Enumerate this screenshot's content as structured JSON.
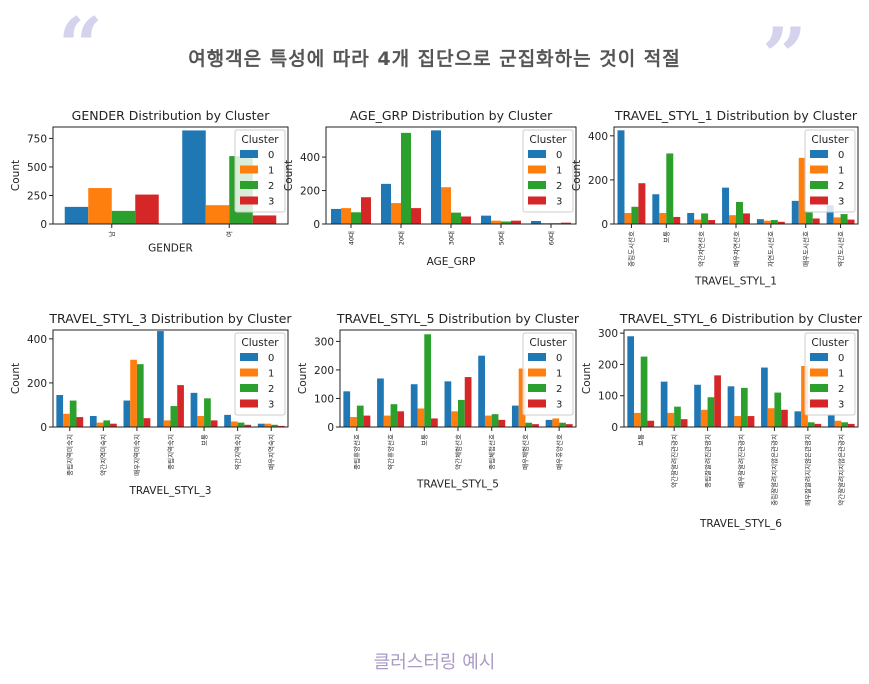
{
  "headline": "여행객은 특성에 따라 4개 집단으로 군집화하는 것이 적절",
  "caption": "클러스터링 예시",
  "colors": [
    "#1f77b4",
    "#ff7f0e",
    "#2ca02c",
    "#d62728"
  ],
  "legend_title": "Cluster",
  "legend_labels": [
    "0",
    "1",
    "2",
    "3"
  ],
  "chart_data": [
    {
      "type": "bar",
      "title": "GENDER Distribution by Cluster",
      "xlabel": "GENDER",
      "ylabel": "Count",
      "ylim": [
        0,
        850
      ],
      "yticks": [
        0,
        250,
        500,
        750
      ],
      "categories": [
        "남",
        "여"
      ],
      "series": [
        {
          "name": "0",
          "values": [
            150,
            820
          ]
        },
        {
          "name": "1",
          "values": [
            315,
            165
          ]
        },
        {
          "name": "2",
          "values": [
            115,
            595
          ]
        },
        {
          "name": "3",
          "values": [
            258,
            75
          ]
        }
      ],
      "legend": "top-right"
    },
    {
      "type": "bar",
      "title": "AGE_GRP Distribution by Cluster",
      "xlabel": "AGE_GRP",
      "ylabel": "Count",
      "ylim": [
        0,
        580
      ],
      "yticks": [
        0,
        200,
        400
      ],
      "categories": [
        "40대",
        "20대",
        "30대",
        "50대",
        "60대"
      ],
      "series": [
        {
          "name": "0",
          "values": [
            90,
            240,
            560,
            50,
            18
          ]
        },
        {
          "name": "1",
          "values": [
            95,
            125,
            220,
            20,
            5
          ]
        },
        {
          "name": "2",
          "values": [
            70,
            545,
            68,
            15,
            5
          ]
        },
        {
          "name": "3",
          "values": [
            160,
            95,
            45,
            20,
            8
          ]
        }
      ],
      "legend": "top-right"
    },
    {
      "type": "bar",
      "title": "TRAVEL_STYL_1 Distribution by Cluster",
      "xlabel": "TRAVEL_STYL_1",
      "ylabel": "Count",
      "ylim": [
        0,
        440
      ],
      "yticks": [
        0,
        200,
        400
      ],
      "categories": [
        "중립도시선호",
        "보통",
        "약간자연선호",
        "매우자연선호",
        "자연도시선호",
        "매우도시선호",
        "약간도시선호"
      ],
      "series": [
        {
          "name": "0",
          "values": [
            425,
            135,
            50,
            165,
            22,
            105,
            85
          ]
        },
        {
          "name": "1",
          "values": [
            50,
            50,
            20,
            40,
            15,
            300,
            30
          ]
        },
        {
          "name": "2",
          "values": [
            78,
            320,
            48,
            100,
            18,
            55,
            45
          ]
        },
        {
          "name": "3",
          "values": [
            185,
            32,
            18,
            48,
            10,
            25,
            20
          ]
        }
      ],
      "legend": "top-right"
    },
    {
      "type": "bar",
      "title": "TRAVEL_STYL_3 Distribution by Cluster",
      "xlabel": "TRAVEL_STYL_3",
      "ylabel": "Count",
      "ylim": [
        0,
        440
      ],
      "yticks": [
        0,
        200,
        400
      ],
      "categories": [
        "중립지역미숙지",
        "약간지역미숙지",
        "매우지역미숙지",
        "중립지역숙지",
        "보통",
        "약간지역숙지",
        "매우지역숙지"
      ],
      "series": [
        {
          "name": "0",
          "values": [
            145,
            50,
            120,
            435,
            155,
            55,
            15
          ]
        },
        {
          "name": "1",
          "values": [
            60,
            20,
            305,
            30,
            50,
            25,
            15
          ]
        },
        {
          "name": "2",
          "values": [
            120,
            30,
            285,
            95,
            130,
            20,
            10
          ]
        },
        {
          "name": "3",
          "values": [
            45,
            15,
            40,
            190,
            30,
            10,
            5
          ]
        }
      ],
      "legend": "top-right"
    },
    {
      "type": "bar",
      "title": "TRAVEL_STYL_5 Distribution by Cluster",
      "xlabel": "TRAVEL_STYL_5",
      "ylabel": "Count",
      "ylim": [
        0,
        340
      ],
      "yticks": [
        0,
        100,
        200,
        300
      ],
      "categories": [
        "중립휴양선호",
        "약간휴양선호",
        "보통",
        "약간체험선호",
        "중립체험선호",
        "매우체험선호",
        "매우휴양선호"
      ],
      "series": [
        {
          "name": "0",
          "values": [
            125,
            170,
            150,
            160,
            250,
            75,
            25
          ]
        },
        {
          "name": "1",
          "values": [
            35,
            40,
            65,
            55,
            40,
            205,
            30
          ]
        },
        {
          "name": "2",
          "values": [
            75,
            80,
            325,
            95,
            45,
            15,
            15
          ]
        },
        {
          "name": "3",
          "values": [
            40,
            55,
            30,
            175,
            25,
            10,
            10
          ]
        }
      ],
      "legend": "top-right"
    },
    {
      "type": "bar",
      "title": "TRAVEL_STYL_6 Distribution by Cluster",
      "xlabel": "TRAVEL_STYL_6",
      "ylabel": "Count",
      "ylim": [
        0,
        310
      ],
      "yticks": [
        0,
        100,
        200,
        300
      ],
      "categories": [
        "보통",
        "약간잘알려진관광지",
        "중립잘알려진관광지",
        "매우잘알려진관광지",
        "중립잘알려지지않은관광지",
        "매우잘알려지지않은관광지",
        "약간잘알려지지않은관광지"
      ],
      "series": [
        {
          "name": "0",
          "values": [
            290,
            145,
            135,
            130,
            190,
            50,
            40
          ]
        },
        {
          "name": "1",
          "values": [
            45,
            45,
            55,
            35,
            60,
            195,
            20
          ]
        },
        {
          "name": "2",
          "values": [
            225,
            65,
            95,
            125,
            110,
            15,
            15
          ]
        },
        {
          "name": "3",
          "values": [
            20,
            25,
            165,
            35,
            55,
            10,
            10
          ]
        }
      ],
      "legend": "top-right"
    }
  ]
}
